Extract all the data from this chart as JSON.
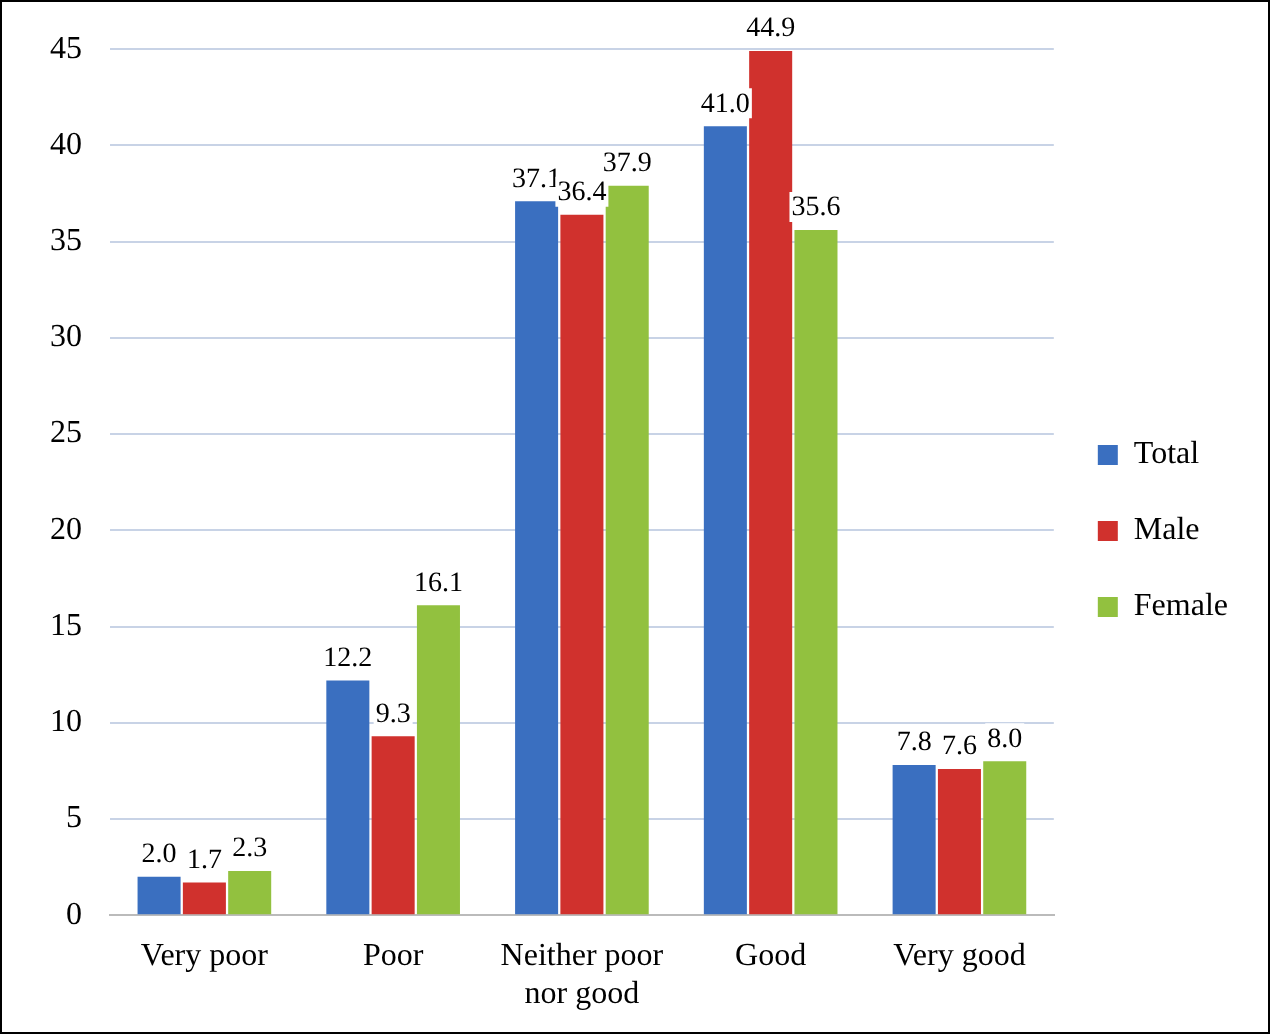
{
  "chart_data": {
    "type": "bar",
    "categories": [
      "Very poor",
      "Poor",
      "Neither poor nor good",
      "Good",
      "Very good"
    ],
    "series": [
      {
        "name": "Total",
        "color": "#3a6fc0",
        "values": [
          2.0,
          12.2,
          37.1,
          41.0,
          7.8
        ],
        "value_labels": [
          "2.0",
          "12.2",
          "37.1",
          "41.0",
          "7.8"
        ]
      },
      {
        "name": "Male",
        "color": "#d0312d",
        "values": [
          1.7,
          9.3,
          36.4,
          44.9,
          7.6
        ],
        "value_labels": [
          "1.7",
          "9.3",
          "36.4",
          "44.9",
          "7.6"
        ]
      },
      {
        "name": "Female",
        "color": "#92c13f",
        "values": [
          2.3,
          16.1,
          37.9,
          35.6,
          8.0
        ],
        "value_labels": [
          "2.3",
          "16.1",
          "37.9",
          "35.6",
          "8.0"
        ]
      }
    ],
    "ylim": [
      0,
      45
    ],
    "yticks": [
      0,
      5,
      10,
      15,
      20,
      25,
      30,
      35,
      40,
      45
    ],
    "grid": "y",
    "legend": "right"
  }
}
